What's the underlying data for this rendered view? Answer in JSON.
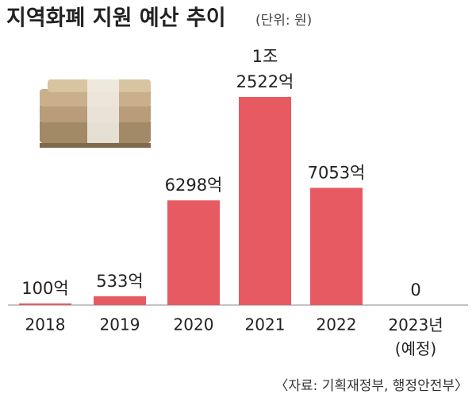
{
  "chart_data": {
    "type": "bar",
    "title": "지역화폐 지원 예산 추이",
    "subtitle": "(단위: 원)",
    "categories": [
      "2018",
      "2019",
      "2020",
      "2021",
      "2022",
      "2023년\n(예정)"
    ],
    "values": [
      100,
      533,
      6298,
      12522,
      7053,
      0
    ],
    "value_labels": [
      "100억",
      "533억",
      "6298억",
      "1조\n2522억",
      "7053억",
      "0"
    ],
    "color": "#e85a62",
    "source": "〈자료: 기획재정부, 행정안전부〉"
  }
}
